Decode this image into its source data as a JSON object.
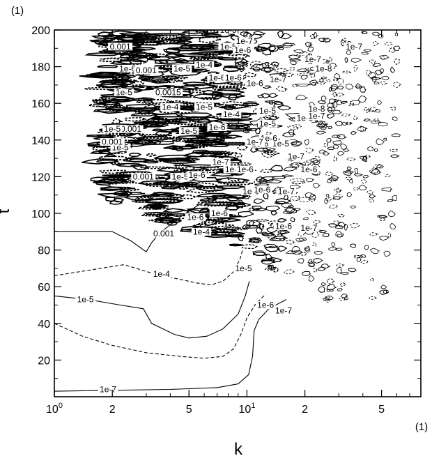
{
  "chart_data": {
    "type": "contour",
    "title": "",
    "xlabel": "k",
    "ylabel": "t",
    "x_unit_label": "(1)",
    "y_unit_label": "(1)",
    "xscale": "log",
    "xlim": [
      1,
      80
    ],
    "ylim": [
      0,
      200
    ],
    "grid": false,
    "legend": "none",
    "x_ticks": [
      {
        "value": 1,
        "label": "10",
        "sup": "0"
      },
      {
        "value": 2,
        "label": "2",
        "sup": ""
      },
      {
        "value": 5,
        "label": "5",
        "sup": ""
      },
      {
        "value": 10,
        "label": "10",
        "sup": "1"
      },
      {
        "value": 20,
        "label": "2",
        "sup": ""
      },
      {
        "value": 50,
        "label": "5",
        "sup": ""
      }
    ],
    "y_ticks": [
      {
        "value": 20,
        "label": "20"
      },
      {
        "value": 40,
        "label": "40"
      },
      {
        "value": 60,
        "label": "60"
      },
      {
        "value": 80,
        "label": "80"
      },
      {
        "value": 100,
        "label": "100"
      },
      {
        "value": 120,
        "label": "120"
      },
      {
        "value": 140,
        "label": "140"
      },
      {
        "value": 160,
        "label": "160"
      },
      {
        "value": 180,
        "label": "180"
      },
      {
        "value": 200,
        "label": "200"
      }
    ],
    "contours": [
      {
        "level": "0.001",
        "style": "solid",
        "points": [
          [
            1,
            90
          ],
          [
            2,
            90
          ],
          [
            2.5,
            85
          ],
          [
            3,
            79
          ],
          [
            3.2,
            84
          ],
          [
            3.5,
            89
          ],
          [
            4.5,
            98
          ],
          [
            5.5,
            104
          ],
          [
            6.5,
            108
          ]
        ]
      },
      {
        "level": "1e-4",
        "style": "dashed",
        "points": [
          [
            1,
            66
          ],
          [
            2.3,
            72
          ],
          [
            3.3,
            67
          ],
          [
            4.5,
            64
          ],
          [
            5.5,
            62
          ],
          [
            6.5,
            61
          ],
          [
            7.5,
            63
          ],
          [
            8.5,
            68
          ],
          [
            9.2,
            75
          ],
          [
            9.5,
            80
          ]
        ]
      },
      {
        "level": "1e-5",
        "style": "solid",
        "points": [
          [
            1,
            55
          ],
          [
            1.5,
            53
          ],
          [
            2.2,
            50
          ],
          [
            2.9,
            48
          ],
          [
            3.2,
            40
          ],
          [
            4.2,
            34
          ],
          [
            5,
            32
          ],
          [
            6.2,
            33
          ],
          [
            7.5,
            37
          ],
          [
            9,
            45
          ],
          [
            9.8,
            55
          ],
          [
            10.3,
            63
          ]
        ]
      },
      {
        "level": "1e-6",
        "style": "dashed",
        "points": [
          [
            1,
            40
          ],
          [
            1.4,
            33
          ],
          [
            2,
            28
          ],
          [
            3,
            24
          ],
          [
            4.5,
            22
          ],
          [
            6,
            21
          ],
          [
            7.5,
            22
          ],
          [
            8.5,
            26
          ],
          [
            9.3,
            34
          ],
          [
            10,
            43
          ],
          [
            11,
            50
          ],
          [
            12.5,
            56
          ]
        ]
      },
      {
        "level": "1e-7",
        "style": "solid",
        "points": [
          [
            1,
            3
          ],
          [
            4,
            4
          ],
          [
            7,
            5
          ],
          [
            9,
            7
          ],
          [
            10.2,
            12
          ],
          [
            10.7,
            22
          ],
          [
            10.9,
            36
          ],
          [
            11.5,
            42
          ],
          [
            13,
            48
          ],
          [
            16,
            53
          ]
        ]
      }
    ],
    "contour_labels": [
      {
        "text": "0.001",
        "x": 3.7,
        "y": 88
      },
      {
        "text": "1e-4",
        "x": 3.6,
        "y": 66
      },
      {
        "text": "1e-5",
        "x": 1.45,
        "y": 52
      },
      {
        "text": "1e-6",
        "x": 12.5,
        "y": 49
      },
      {
        "text": "1e-7",
        "x": 15.5,
        "y": 46
      },
      {
        "text": "1e-7",
        "x": 1.9,
        "y": 3
      },
      {
        "text": "1e-4",
        "x": 5.8,
        "y": 89
      },
      {
        "text": "1e-5",
        "x": 9.6,
        "y": 69
      },
      {
        "text": "1e-5",
        "x": 10.5,
        "y": 111
      },
      {
        "text": "1e-6",
        "x": 12,
        "y": 112
      },
      {
        "text": "1e-7",
        "x": 16,
        "y": 111
      },
      {
        "text": "1e-6",
        "x": 15.5,
        "y": 92
      },
      {
        "text": "1e-7",
        "x": 21,
        "y": 91
      },
      {
        "text": "1e-6",
        "x": 7.2,
        "y": 99
      },
      {
        "text": "1e-6",
        "x": 5.4,
        "y": 97
      },
      {
        "text": "0.001",
        "x": 2.9,
        "y": 119
      },
      {
        "text": "1e-5",
        "x": 4.5,
        "y": 119
      },
      {
        "text": "1e-6",
        "x": 5.5,
        "y": 120
      },
      {
        "text": "1e-6",
        "x": 8.5,
        "y": 123
      },
      {
        "text": "1e-6",
        "x": 9.8,
        "y": 123
      },
      {
        "text": "1e-7",
        "x": 7.3,
        "y": 127
      },
      {
        "text": "1e-6",
        "x": 11.7,
        "y": 137
      },
      {
        "text": "1e-5",
        "x": 15,
        "y": 137
      },
      {
        "text": "1e-7",
        "x": 18,
        "y": 130
      },
      {
        "text": "1e-6",
        "x": 21,
        "y": 123
      },
      {
        "text": "1e-5",
        "x": 20,
        "y": 151
      },
      {
        "text": "1e-7",
        "x": 23,
        "y": 152
      },
      {
        "text": "1e-8",
        "x": 23,
        "y": 156
      },
      {
        "text": "1e-6",
        "x": 13,
        "y": 140
      },
      {
        "text": "1e-7",
        "x": 11,
        "y": 138
      },
      {
        "text": "1e-5",
        "x": 5,
        "y": 144
      },
      {
        "text": "1e-6",
        "x": 7,
        "y": 146
      },
      {
        "text": "1e-5",
        "x": 2.2,
        "y": 135
      },
      {
        "text": "0.001",
        "x": 2,
        "y": 138
      },
      {
        "text": "0.001",
        "x": 2.5,
        "y": 145
      },
      {
        "text": "1e-5",
        "x": 2,
        "y": 145
      },
      {
        "text": "1e-4",
        "x": 4,
        "y": 157
      },
      {
        "text": "1e-5",
        "x": 6,
        "y": 157
      },
      {
        "text": "1e-4",
        "x": 8.3,
        "y": 153
      },
      {
        "text": "1e-5",
        "x": 12.8,
        "y": 155
      },
      {
        "text": "1e-5",
        "x": 12.8,
        "y": 148
      },
      {
        "text": "1e-5",
        "x": 2.3,
        "y": 165
      },
      {
        "text": "0.0015",
        "x": 3.9,
        "y": 165
      },
      {
        "text": "1e-6",
        "x": 11,
        "y": 170
      },
      {
        "text": "1e-7",
        "x": 14.5,
        "y": 172
      },
      {
        "text": "1e-6",
        "x": 7,
        "y": 173
      },
      {
        "text": "1e-6",
        "x": 8.5,
        "y": 173
      },
      {
        "text": "1e-6",
        "x": 2.4,
        "y": 178
      },
      {
        "text": "0.001",
        "x": 3,
        "y": 177
      },
      {
        "text": "1e-5",
        "x": 4.6,
        "y": 178
      },
      {
        "text": "1e-4",
        "x": 6,
        "y": 180
      },
      {
        "text": "1e-8",
        "x": 25,
        "y": 178
      },
      {
        "text": "1e-7",
        "x": 22,
        "y": 183
      },
      {
        "text": "0.001",
        "x": 2.2,
        "y": 190
      },
      {
        "text": "1e-5",
        "x": 8,
        "y": 190
      },
      {
        "text": "1e-7",
        "x": 9.7,
        "y": 193
      },
      {
        "text": "1e-6",
        "x": 9.5,
        "y": 188
      },
      {
        "text": "1e-5",
        "x": 8,
        "y": 199
      },
      {
        "text": "1e-7",
        "x": 36,
        "y": 190
      }
    ]
  }
}
